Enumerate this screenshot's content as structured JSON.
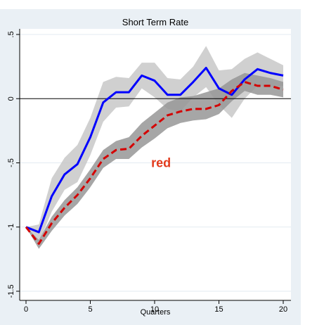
{
  "chart_data": {
    "type": "line",
    "title": "Short Term Rate",
    "xlabel": "Quarters",
    "ylabel": "",
    "xlim": [
      0,
      20
    ],
    "ylim": [
      -1.5,
      0.5
    ],
    "xticks": [
      "0",
      "5",
      "10",
      "15",
      "20"
    ],
    "xtick_values": [
      0,
      5,
      10,
      15,
      20
    ],
    "yticks": [
      "-1.5",
      "-1",
      "-.5",
      "0",
      ".5"
    ],
    "ytick_values": [
      -1.5,
      -1,
      -0.5,
      0,
      0.5
    ],
    "grid": true,
    "reference_line": 0,
    "annotation": {
      "text": "red",
      "x": 10.5,
      "y": -0.5,
      "color": "#e23a1c"
    },
    "x": [
      0,
      1,
      2,
      3,
      4,
      5,
      6,
      7,
      8,
      9,
      10,
      11,
      12,
      13,
      14,
      15,
      16,
      17,
      18,
      19,
      20
    ],
    "series": [
      {
        "style": "solid",
        "color": "#0000ff",
        "band_color": "#c8c8c8",
        "values": [
          -1.0,
          -1.04,
          -0.76,
          -0.59,
          -0.51,
          -0.3,
          -0.03,
          0.05,
          0.05,
          0.18,
          0.14,
          0.03,
          0.03,
          0.13,
          0.24,
          0.08,
          0.03,
          0.15,
          0.23,
          0.2,
          0.18
        ],
        "band_upper": [
          -1.0,
          -0.98,
          -0.62,
          -0.46,
          -0.36,
          -0.15,
          0.13,
          0.17,
          0.16,
          0.28,
          0.28,
          0.16,
          0.15,
          0.25,
          0.41,
          0.22,
          0.23,
          0.31,
          0.36,
          0.31,
          0.26
        ],
        "band_lower": [
          -1.0,
          -1.12,
          -0.88,
          -0.71,
          -0.65,
          -0.44,
          -0.18,
          -0.07,
          -0.06,
          0.08,
          0.01,
          -0.08,
          -0.1,
          0.01,
          0.09,
          -0.05,
          -0.15,
          0.0,
          0.1,
          0.09,
          0.1
        ]
      },
      {
        "style": "dashed",
        "color": "#d40000",
        "band_color": "#969696",
        "values": [
          -1.0,
          -1.13,
          -0.97,
          -0.85,
          -0.75,
          -0.62,
          -0.47,
          -0.4,
          -0.39,
          -0.29,
          -0.21,
          -0.13,
          -0.1,
          -0.08,
          -0.08,
          -0.05,
          0.06,
          0.13,
          0.1,
          0.1,
          0.07
        ],
        "band_upper": [
          -1.0,
          -1.1,
          -0.92,
          -0.79,
          -0.69,
          -0.55,
          -0.4,
          -0.33,
          -0.3,
          -0.19,
          -0.11,
          -0.03,
          0.01,
          0.02,
          0.05,
          0.08,
          0.15,
          0.2,
          0.18,
          0.16,
          0.13
        ],
        "band_lower": [
          -1.0,
          -1.17,
          -1.03,
          -0.91,
          -0.82,
          -0.69,
          -0.54,
          -0.47,
          -0.47,
          -0.38,
          -0.31,
          -0.23,
          -0.19,
          -0.17,
          -0.16,
          -0.12,
          -0.02,
          0.06,
          0.03,
          0.03,
          0.01
        ]
      }
    ]
  }
}
